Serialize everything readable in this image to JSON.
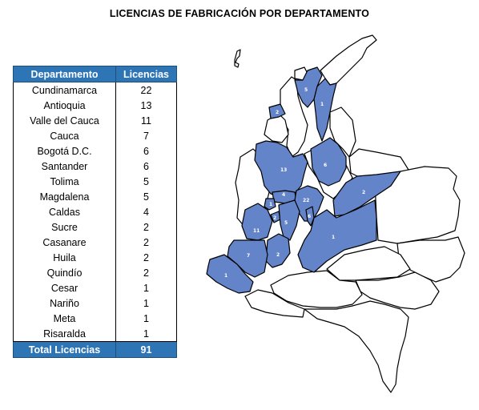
{
  "title": "LICENCIAS DE FABRICACIÓN POR DEPARTAMENTO",
  "table": {
    "headers": [
      "Departamento",
      "Licencias"
    ],
    "rows": [
      {
        "dep": "Cundinamarca",
        "val": "22"
      },
      {
        "dep": "Antioquia",
        "val": "13"
      },
      {
        "dep": "Valle del Cauca",
        "val": "11"
      },
      {
        "dep": "Cauca",
        "val": "7"
      },
      {
        "dep": "Bogotá D.C.",
        "val": "6"
      },
      {
        "dep": "Santander",
        "val": "6"
      },
      {
        "dep": "Tolima",
        "val": "5"
      },
      {
        "dep": "Magdalena",
        "val": "5"
      },
      {
        "dep": "Caldas",
        "val": "4"
      },
      {
        "dep": "Sucre",
        "val": "2"
      },
      {
        "dep": "Casanare",
        "val": "2"
      },
      {
        "dep": "Huila",
        "val": "2"
      },
      {
        "dep": "Quindío",
        "val": "2"
      },
      {
        "dep": "Cesar",
        "val": "1"
      },
      {
        "dep": "Nariño",
        "val": "1"
      },
      {
        "dep": "Meta",
        "val": "1"
      },
      {
        "dep": "Risaralda",
        "val": "1"
      }
    ],
    "total_label": "Total Licencias",
    "total_value": "91"
  },
  "map_labels": {
    "magdalena": "5",
    "cesar": "1",
    "sucre": "2",
    "antioquia": "13",
    "santander": "6",
    "caldas": "4",
    "cundinamarca": "22",
    "casanare": "2",
    "bogota": "6",
    "risaralda": "1",
    "quindio": "2",
    "tolima": "5",
    "valle": "11",
    "meta": "1",
    "cauca": "7",
    "huila": "2",
    "narino": "1"
  },
  "colors": {
    "header_fill": "#2e75b6",
    "highlight_fill": "#6384c8"
  }
}
